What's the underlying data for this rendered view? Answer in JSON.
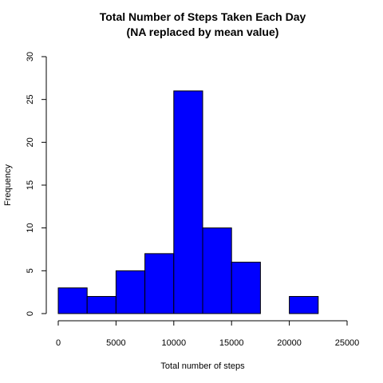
{
  "chart_data": {
    "type": "bar",
    "title": "Total Number of Steps Taken Each Day",
    "subtitle": "(NA replaced by mean value)",
    "xlabel": "Total number of steps",
    "ylabel": "Frequency",
    "bar_color": "#0000ff",
    "xlim": [
      0,
      25000
    ],
    "ylim": [
      0,
      30
    ],
    "x_ticks": [
      0,
      5000,
      10000,
      15000,
      20000,
      25000
    ],
    "y_ticks": [
      0,
      5,
      10,
      15,
      20,
      25,
      30
    ],
    "bins": [
      {
        "start": 0,
        "end": 2500,
        "value": 3
      },
      {
        "start": 2500,
        "end": 5000,
        "value": 2
      },
      {
        "start": 5000,
        "end": 7500,
        "value": 5
      },
      {
        "start": 7500,
        "end": 10000,
        "value": 7
      },
      {
        "start": 10000,
        "end": 12500,
        "value": 26
      },
      {
        "start": 12500,
        "end": 15000,
        "value": 10
      },
      {
        "start": 15000,
        "end": 17500,
        "value": 6
      },
      {
        "start": 17500,
        "end": 20000,
        "value": 0
      },
      {
        "start": 20000,
        "end": 22500,
        "value": 2
      },
      {
        "start": 22500,
        "end": 25000,
        "value": 0
      }
    ]
  }
}
